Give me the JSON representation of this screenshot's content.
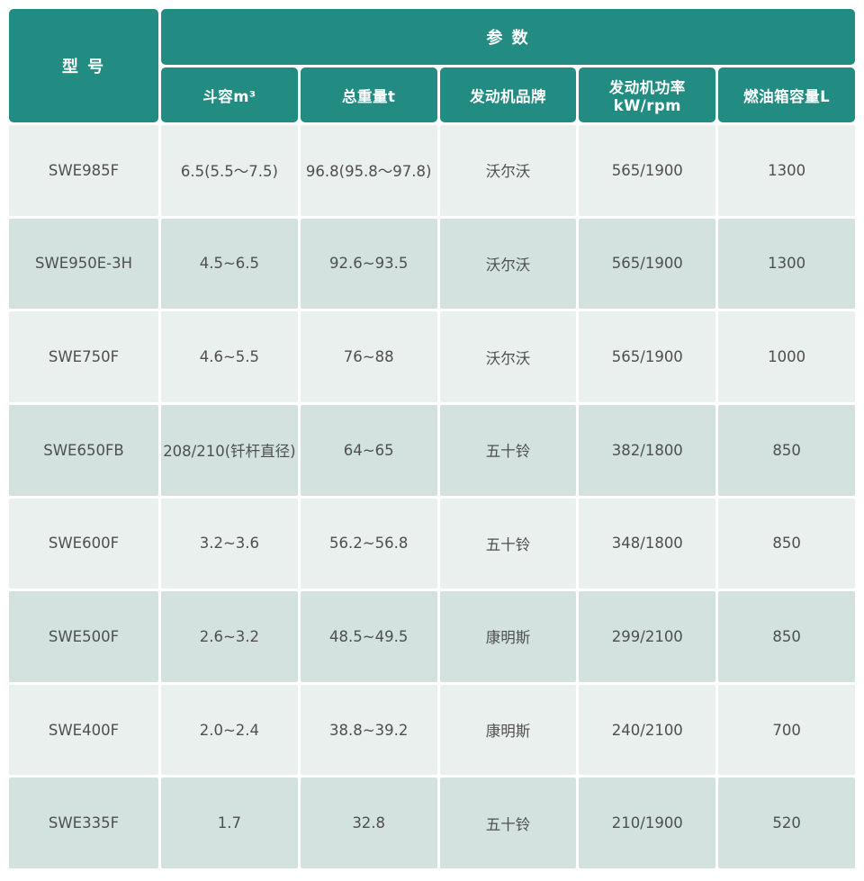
{
  "colors": {
    "header_bg": "#238c82",
    "header_text": "#ffffff",
    "row_light_bg": "#e9f0ee",
    "row_dark_bg": "#d3e2de",
    "cell_text": "#4f4f4f"
  },
  "table": {
    "header": {
      "model_label": "型 号",
      "params_label": "参 数",
      "columns": [
        "斗容m³",
        "总重量t",
        "发动机品牌",
        "发动机功率kW/rpm",
        "燃油箱容量L"
      ]
    },
    "rows": [
      {
        "model": "SWE985F",
        "bucket": "6.5(5.5～7.5)",
        "weight": "96.8(95.8～97.8)",
        "brand": "沃尔沃",
        "power": "565/1900",
        "fuel": "1300"
      },
      {
        "model": "SWE950E-3H",
        "bucket": "4.5~6.5",
        "weight": "92.6~93.5",
        "brand": "沃尔沃",
        "power": "565/1900",
        "fuel": "1300"
      },
      {
        "model": "SWE750F",
        "bucket": "4.6~5.5",
        "weight": "76~88",
        "brand": "沃尔沃",
        "power": "565/1900",
        "fuel": "1000"
      },
      {
        "model": "SWE650FB",
        "bucket": "208/210(钎杆直径)",
        "weight": "64~65",
        "brand": "五十铃",
        "power": "382/1800",
        "fuel": "850"
      },
      {
        "model": "SWE600F",
        "bucket": "3.2~3.6",
        "weight": "56.2~56.8",
        "brand": "五十铃",
        "power": "348/1800",
        "fuel": "850"
      },
      {
        "model": "SWE500F",
        "bucket": "2.6~3.2",
        "weight": "48.5~49.5",
        "brand": "康明斯",
        "power": "299/2100",
        "fuel": "850"
      },
      {
        "model": "SWE400F",
        "bucket": "2.0~2.4",
        "weight": "38.8~39.2",
        "brand": "康明斯",
        "power": "240/2100",
        "fuel": "700"
      },
      {
        "model": "SWE335F",
        "bucket": "1.7",
        "weight": "32.8",
        "brand": "五十铃",
        "power": "210/1900",
        "fuel": "520"
      }
    ]
  },
  "chart_data": {
    "type": "table",
    "title": "参数",
    "columns": [
      "型号",
      "斗容m³",
      "总重量t",
      "发动机品牌",
      "发动机功率kW/rpm",
      "燃油箱容量L"
    ],
    "rows": [
      [
        "SWE985F",
        "6.5(5.5～7.5)",
        "96.8(95.8～97.8)",
        "沃尔沃",
        "565/1900",
        "1300"
      ],
      [
        "SWE950E-3H",
        "4.5~6.5",
        "92.6~93.5",
        "沃尔沃",
        "565/1900",
        "1300"
      ],
      [
        "SWE750F",
        "4.6~5.5",
        "76~88",
        "沃尔沃",
        "565/1900",
        "1000"
      ],
      [
        "SWE650FB",
        "208/210(钎杆直径)",
        "64~65",
        "五十铃",
        "382/1800",
        "850"
      ],
      [
        "SWE600F",
        "3.2~3.6",
        "56.2~56.8",
        "五十铃",
        "348/1800",
        "850"
      ],
      [
        "SWE500F",
        "2.6~3.2",
        "48.5~49.5",
        "康明斯",
        "299/2100",
        "850"
      ],
      [
        "SWE400F",
        "2.0~2.4",
        "38.8~39.2",
        "康明斯",
        "240/2100",
        "700"
      ],
      [
        "SWE335F",
        "1.7",
        "32.8",
        "五十铃",
        "210/1900",
        "520"
      ]
    ]
  }
}
